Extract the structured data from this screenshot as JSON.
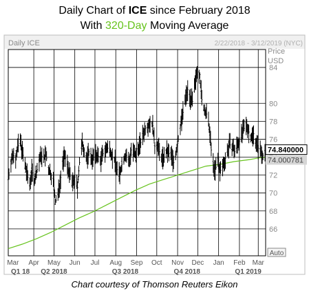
{
  "header": {
    "title_prefix": "Daily Chart of ",
    "title_ticker": "ICE",
    "title_suffix": " since February 2018",
    "subtitle_prefix": "With ",
    "subtitle_highlight": "320-Day",
    "subtitle_suffix": " Moving Average"
  },
  "chart_panel": {
    "label": "Daily ICE",
    "date_range": "2/22/2018 - 3/12/2019 (NYC)",
    "price_label": "Price",
    "currency_label": "USD",
    "auto_button": "Auto"
  },
  "footer": {
    "credit": "Chart courtesy of Thomson Reuters Eikon"
  },
  "colors": {
    "price": "#000000",
    "moving_average": "#66c31c",
    "grid": "#000000",
    "last_price_box": "#ffffff",
    "ma_box": "#d6d6d6"
  },
  "chart_data": {
    "type": "line",
    "title": "Daily Chart of ICE since February 2018",
    "subtitle": "With 320-Day Moving Average",
    "x_axis": {
      "start": "2018-02-22",
      "end": "2019-03-12",
      "month_labels": [
        "Mar",
        "Apr",
        "May",
        "Jun",
        "Jul",
        "Aug",
        "Sep",
        "Oct",
        "Nov",
        "Dec",
        "Jan",
        "Feb",
        "Mar"
      ],
      "quarter_labels": [
        "Q1 18",
        "Q2 2018",
        "Q3 2018",
        "Q4 2018",
        "Q1 2019"
      ]
    },
    "y_axis": {
      "range": [
        63,
        86
      ],
      "ticks": [
        66,
        68,
        70,
        72,
        74,
        76,
        78,
        80,
        84
      ],
      "label": "Price USD"
    },
    "grid": true,
    "last_price": "74.840000",
    "moving_average_last": "74.000781",
    "series": [
      {
        "name": "ICE",
        "style": "bar",
        "values": [
          [
            "2018-02-22",
            71.8
          ],
          [
            "2018-02-26",
            73.5
          ],
          [
            "2018-03-01",
            74.2
          ],
          [
            "2018-03-05",
            74.0
          ],
          [
            "2018-03-08",
            75.1
          ],
          [
            "2018-03-12",
            75.8
          ],
          [
            "2018-03-15",
            74.6
          ],
          [
            "2018-03-19",
            73.0
          ],
          [
            "2018-03-22",
            72.0
          ],
          [
            "2018-03-26",
            71.0
          ],
          [
            "2018-03-29",
            72.5
          ],
          [
            "2018-04-02",
            71.4
          ],
          [
            "2018-04-05",
            72.3
          ],
          [
            "2018-04-09",
            73.6
          ],
          [
            "2018-04-12",
            74.2
          ],
          [
            "2018-04-16",
            73.8
          ],
          [
            "2018-04-19",
            74.3
          ],
          [
            "2018-04-23",
            72.6
          ],
          [
            "2018-04-26",
            72.2
          ],
          [
            "2018-04-30",
            71.3
          ],
          [
            "2018-05-03",
            69.0
          ],
          [
            "2018-05-07",
            69.8
          ],
          [
            "2018-05-10",
            71.2
          ],
          [
            "2018-05-14",
            73.4
          ],
          [
            "2018-05-17",
            74.1
          ],
          [
            "2018-05-21",
            73.2
          ],
          [
            "2018-05-24",
            72.1
          ],
          [
            "2018-05-29",
            71.0
          ],
          [
            "2018-06-01",
            71.8
          ],
          [
            "2018-06-05",
            70.6
          ],
          [
            "2018-06-08",
            73.4
          ],
          [
            "2018-06-12",
            75.5
          ],
          [
            "2018-06-15",
            74.8
          ],
          [
            "2018-06-19",
            73.7
          ],
          [
            "2018-06-22",
            74.6
          ],
          [
            "2018-06-26",
            73.8
          ],
          [
            "2018-06-29",
            74.0
          ],
          [
            "2018-07-03",
            74.2
          ],
          [
            "2018-07-06",
            74.1
          ],
          [
            "2018-07-10",
            73.6
          ],
          [
            "2018-07-13",
            74.4
          ],
          [
            "2018-07-17",
            74.8
          ],
          [
            "2018-07-20",
            75.0
          ],
          [
            "2018-07-24",
            74.8
          ],
          [
            "2018-07-27",
            74.0
          ],
          [
            "2018-07-31",
            73.5
          ],
          [
            "2018-08-03",
            72.6
          ],
          [
            "2018-08-07",
            72.0
          ],
          [
            "2018-08-10",
            73.2
          ],
          [
            "2018-08-14",
            74.0
          ],
          [
            "2018-08-17",
            74.2
          ],
          [
            "2018-08-21",
            73.4
          ],
          [
            "2018-08-24",
            74.8
          ],
          [
            "2018-08-28",
            74.4
          ],
          [
            "2018-08-31",
            74.0
          ],
          [
            "2018-09-04",
            75.2
          ],
          [
            "2018-09-07",
            75.6
          ],
          [
            "2018-09-11",
            76.6
          ],
          [
            "2018-09-14",
            77.2
          ],
          [
            "2018-09-18",
            77.6
          ],
          [
            "2018-09-21",
            77.9
          ],
          [
            "2018-09-25",
            77.5
          ],
          [
            "2018-09-28",
            75.2
          ],
          [
            "2018-10-02",
            75.4
          ],
          [
            "2018-10-05",
            74.6
          ],
          [
            "2018-10-09",
            73.8
          ],
          [
            "2018-10-12",
            74.0
          ],
          [
            "2018-10-16",
            74.6
          ],
          [
            "2018-10-19",
            74.4
          ],
          [
            "2018-10-23",
            74.2
          ],
          [
            "2018-10-26",
            73.4
          ],
          [
            "2018-10-30",
            74.6
          ],
          [
            "2018-11-02",
            76.0
          ],
          [
            "2018-11-06",
            77.8
          ],
          [
            "2018-11-09",
            79.0
          ],
          [
            "2018-11-13",
            80.6
          ],
          [
            "2018-11-16",
            81.5
          ],
          [
            "2018-11-20",
            80.6
          ],
          [
            "2018-11-23",
            80.2
          ],
          [
            "2018-11-27",
            82.0
          ],
          [
            "2018-11-30",
            83.8
          ],
          [
            "2018-12-04",
            83.2
          ],
          [
            "2018-12-07",
            80.4
          ],
          [
            "2018-12-11",
            79.2
          ],
          [
            "2018-12-14",
            78.8
          ],
          [
            "2018-12-18",
            77.4
          ],
          [
            "2018-12-21",
            74.8
          ],
          [
            "2018-12-26",
            72.4
          ],
          [
            "2018-12-31",
            73.6
          ],
          [
            "2019-01-03",
            72.4
          ],
          [
            "2019-01-07",
            73.0
          ],
          [
            "2019-01-10",
            73.6
          ],
          [
            "2019-01-14",
            74.6
          ],
          [
            "2019-01-17",
            75.4
          ],
          [
            "2019-01-22",
            75.2
          ],
          [
            "2019-01-25",
            74.6
          ],
          [
            "2019-01-29",
            75.4
          ],
          [
            "2019-02-01",
            75.8
          ],
          [
            "2019-02-05",
            76.6
          ],
          [
            "2019-02-08",
            77.2
          ],
          [
            "2019-02-12",
            77.6
          ],
          [
            "2019-02-15",
            76.8
          ],
          [
            "2019-02-19",
            76.2
          ],
          [
            "2019-02-22",
            76.6
          ],
          [
            "2019-02-26",
            75.6
          ],
          [
            "2019-03-01",
            75.0
          ],
          [
            "2019-03-05",
            74.6
          ],
          [
            "2019-03-08",
            74.2
          ],
          [
            "2019-03-12",
            74.84
          ]
        ]
      },
      {
        "name": "320-Day Moving Average",
        "values": [
          [
            "2018-02-22",
            63.8
          ],
          [
            "2018-03-15",
            64.3
          ],
          [
            "2018-04-05",
            64.9
          ],
          [
            "2018-04-26",
            65.6
          ],
          [
            "2018-05-17",
            66.4
          ],
          [
            "2018-06-07",
            67.2
          ],
          [
            "2018-06-28",
            67.9
          ],
          [
            "2018-07-19",
            68.7
          ],
          [
            "2018-08-09",
            69.5
          ],
          [
            "2018-08-30",
            70.3
          ],
          [
            "2018-09-20",
            71.0
          ],
          [
            "2018-10-11",
            71.5
          ],
          [
            "2018-11-01",
            72.0
          ],
          [
            "2018-11-22",
            72.5
          ],
          [
            "2018-12-13",
            73.0
          ],
          [
            "2019-01-03",
            73.2
          ],
          [
            "2019-01-24",
            73.5
          ],
          [
            "2019-02-14",
            73.7
          ],
          [
            "2019-03-01",
            73.9
          ],
          [
            "2019-03-12",
            74.0
          ]
        ]
      }
    ]
  }
}
